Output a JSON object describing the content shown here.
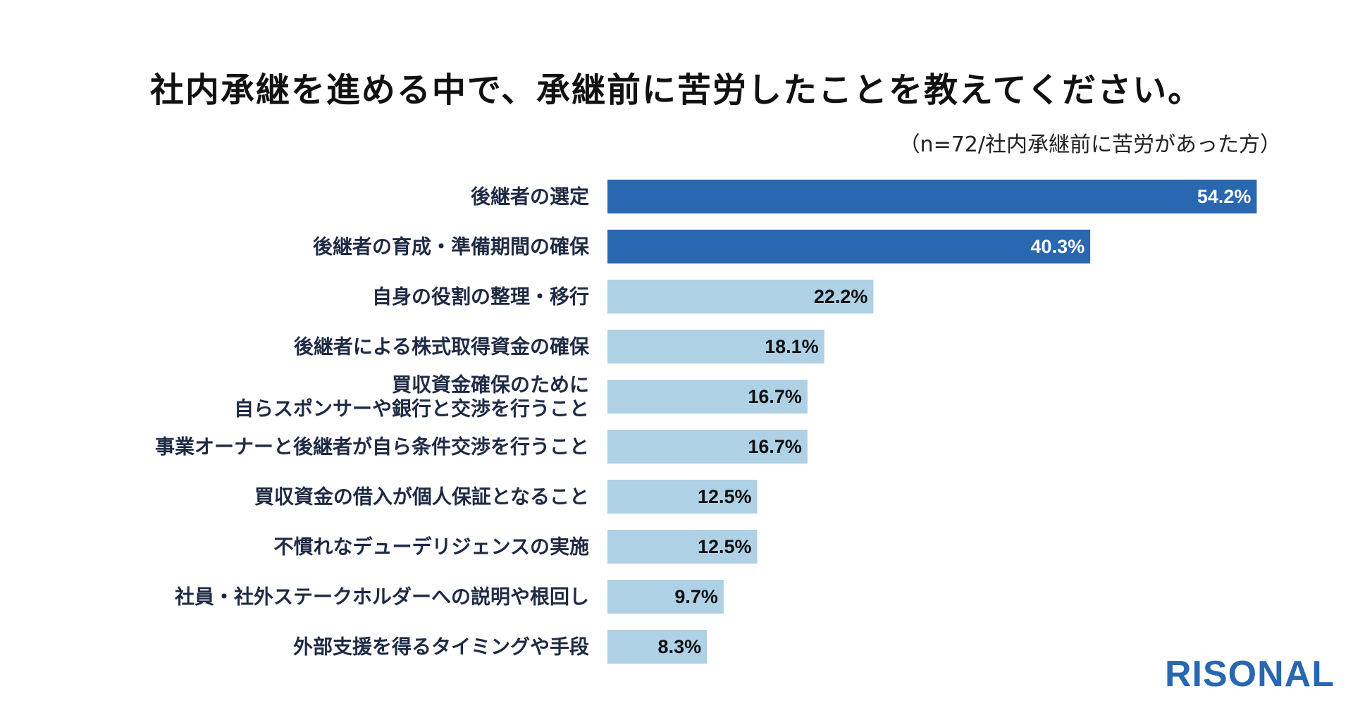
{
  "title": "社内承継を進める中で、承継前に苦労したことを教えてください。",
  "subtitle": "（n=72/社内承継前に苦労があった方）",
  "logo": "RISONAL",
  "colors": {
    "highlight_bar": "#2a67b1",
    "normal_bar": "#aed1e6",
    "highlight_label": "#ffffff",
    "normal_label": "#111111",
    "category_text": "#1f2a44"
  },
  "chart_data": {
    "type": "bar",
    "orientation": "horizontal",
    "title": "社内承継を進める中で、承継前に苦労したことを教えてください。",
    "subtitle": "（n=72/社内承継前に苦労があった方）",
    "categories": [
      [
        "後継者の選定"
      ],
      [
        "後継者の育成・準備期間の確保"
      ],
      [
        "自身の役割の整理・移行"
      ],
      [
        "後継者による株式取得資金の確保"
      ],
      [
        "買収資金確保のために",
        "自らスポンサーや銀行と交渉を行うこと"
      ],
      [
        "事業オーナーと後継者が自ら条件交渉を行うこと"
      ],
      [
        "買収資金の借入が個人保証となること"
      ],
      [
        "不慣れなデューデリジェンスの実施"
      ],
      [
        "社員・社外ステークホルダーへの説明や根回し"
      ],
      [
        "外部支援を得るタイミングや手段"
      ]
    ],
    "values": [
      54.2,
      40.3,
      22.2,
      18.1,
      16.7,
      16.7,
      12.5,
      12.5,
      9.7,
      8.3
    ],
    "value_labels": [
      "54.2%",
      "40.3%",
      "22.2%",
      "18.1%",
      "16.7%",
      "16.7%",
      "12.5%",
      "12.5%",
      "9.7%",
      "8.3%"
    ],
    "highlighted_count": 2,
    "xlim": [
      0,
      60
    ],
    "grid": false,
    "legend": "none"
  }
}
